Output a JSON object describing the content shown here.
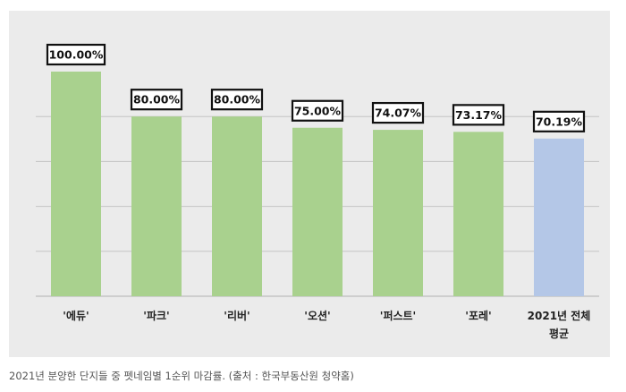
{
  "caption": "2021년 분양한 단지들 중 펫네임별 1순위 마감률. (출처 : 한국부동산원 청약홈)",
  "chart_data": {
    "type": "bar",
    "categories": [
      "'에듀'",
      "'파크'",
      "'리버'",
      "'오션'",
      "'퍼스트'",
      "'포레'",
      "2021년 전체 평균"
    ],
    "category_lines": [
      [
        "'에듀'"
      ],
      [
        "'파크'"
      ],
      [
        "'리버'"
      ],
      [
        "'오션'"
      ],
      [
        "'퍼스트'"
      ],
      [
        "'포레'"
      ],
      [
        "2021년 전체",
        "평균"
      ]
    ],
    "values": [
      100.0,
      80.0,
      80.0,
      75.0,
      74.07,
      73.17,
      70.19
    ],
    "data_labels": [
      "100.00%",
      "80.00%",
      "80.00%",
      "75.00%",
      "74.07%",
      "73.17%",
      "70.19%"
    ],
    "bar_colors": [
      "#a9d18e",
      "#a9d18e",
      "#a9d18e",
      "#a9d18e",
      "#a9d18e",
      "#a9d18e",
      "#b4c7e7"
    ],
    "ylim": [
      0,
      100
    ],
    "y_gridlines": [
      0,
      20,
      40,
      60,
      80
    ],
    "grid": true,
    "legend": "none",
    "title": "",
    "xlabel": "",
    "ylabel": ""
  }
}
